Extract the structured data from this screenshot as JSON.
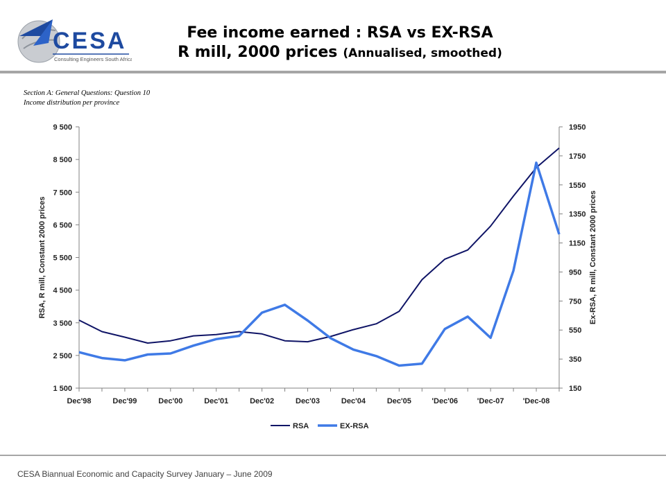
{
  "header": {
    "logo_text": "CESA",
    "logo_subtext": "Consulting Engineers South Africa",
    "title_line1": "Fee income earned : RSA vs EX-RSA",
    "title_line2_main": "R mill, 2000 prices",
    "title_line2_sub": "(Annualised, smoothed)"
  },
  "section": {
    "line1": "Section A: General Questions: Question 10",
    "line2": "Income distribution per province"
  },
  "footer": {
    "text": "CESA Biannual Economic and Capacity Survey January – June 2009"
  },
  "colors": {
    "rsa": "#0f1466",
    "exrsa": "#3f7ae6",
    "rule": "#a6a6a6"
  },
  "chart_data": {
    "type": "line",
    "ylabel_left": "RSA, R mill, Constant 2000 prices",
    "ylabel_right": "Ex-RSA, R mill, Constant 2000 prices",
    "ylim_left": [
      1500,
      9500
    ],
    "ylim_right": [
      150,
      1950
    ],
    "yticks_left": [
      1500,
      2500,
      3500,
      4500,
      5500,
      6500,
      7500,
      8500,
      9500
    ],
    "yticks_left_labels": [
      "1 500",
      "2 500",
      "3 500",
      "4 500",
      "5 500",
      "6 500",
      "7 500",
      "8 500",
      "9 500"
    ],
    "yticks_right": [
      150,
      350,
      550,
      750,
      950,
      1150,
      1350,
      1550,
      1750,
      1950
    ],
    "yticks_right_labels": [
      "150",
      "350",
      "550",
      "750",
      "950",
      "1150",
      "1350",
      "1550",
      "1750",
      "1950"
    ],
    "x_tick_labels": [
      "Dec'98",
      "Dec'99",
      "Dec'00",
      "Dec'01",
      "Dec'02",
      "Dec'03",
      "Dec'04",
      "Dec'05",
      "'Dec'06",
      "'Dec-07",
      "'Dec-08"
    ],
    "x_points": 22,
    "legend_position": "bottom",
    "grid": false,
    "series": [
      {
        "name": "RSA",
        "axis": "left",
        "values": [
          3580,
          3230,
          3060,
          2880,
          2950,
          3100,
          3140,
          3230,
          3160,
          2950,
          2920,
          3080,
          3290,
          3470,
          3850,
          4820,
          5450,
          5730,
          6460,
          7380,
          8250,
          8850
        ]
      },
      {
        "name": "EX-RSA",
        "axis": "left",
        "values": [
          2600,
          2420,
          2350,
          2530,
          2560,
          2800,
          3000,
          3100,
          3810,
          4050,
          3570,
          3030,
          2680,
          2480,
          2190,
          2250,
          3310,
          3690,
          3040,
          5100,
          8400,
          6210
        ]
      }
    ]
  }
}
